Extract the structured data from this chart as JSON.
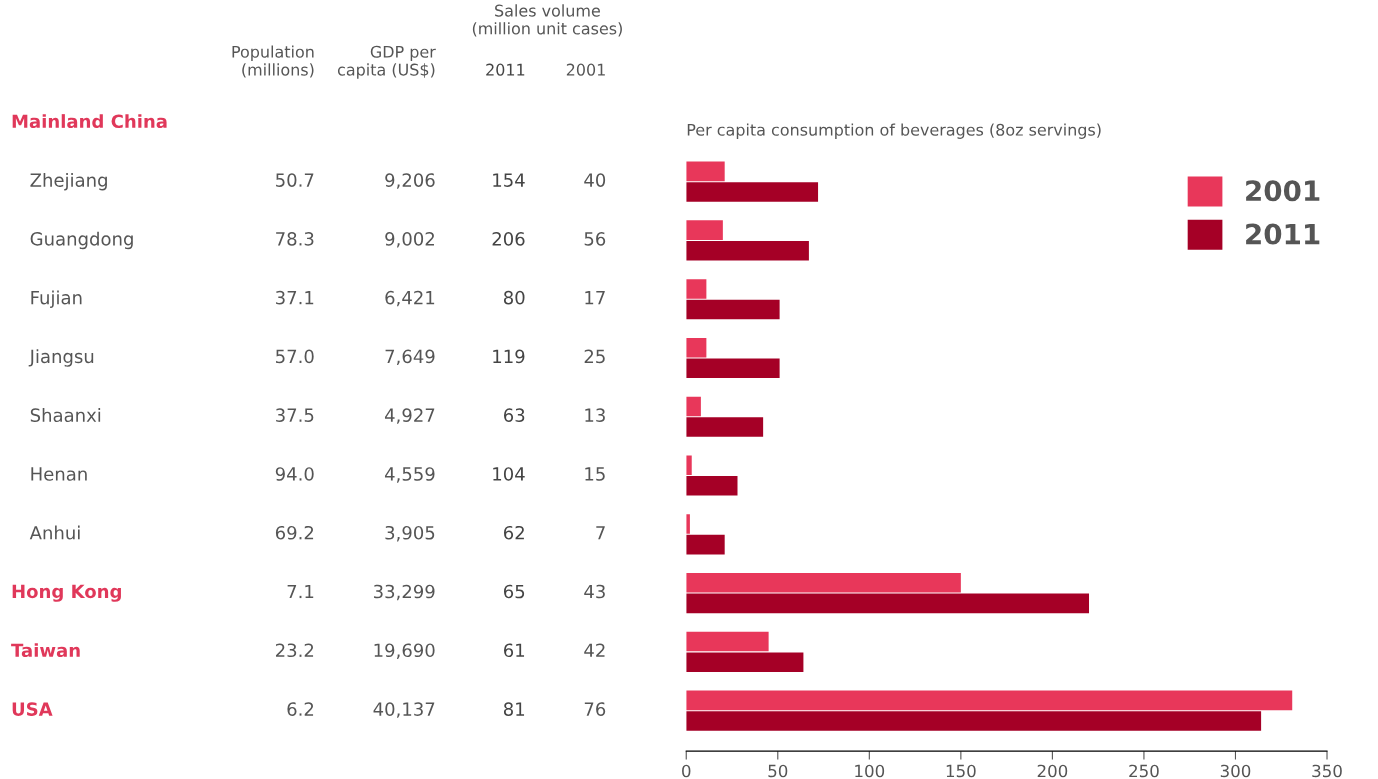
{
  "chart_data": [
    {
      "type": "other",
      "annotations": [
        "Sales volume\n(million unit cases)"
      ],
      "categories": [
        "Mainland China",
        "Zhejiang",
        "Guangdong",
        "Fujian",
        "Jiangsu",
        "Shaanxi",
        "Henan",
        "Anhui",
        "Hong Kong",
        "Taiwan",
        "USA"
      ],
      "colors": [
        "#e0385a",
        "#555555",
        "#555555",
        "#555555",
        "#555555",
        "#555555",
        "#555555",
        "#555555",
        "#e0385a",
        "#e0385a",
        "#e0385a"
      ],
      "series": [
        {
          "name": "Population\n(millions)",
          "color": "#555555",
          "values": [
            null,
            50.7,
            78.3,
            37.1,
            57.0,
            37.5,
            94.0,
            69.2,
            7.1,
            23.2,
            6.2
          ],
          "value_labels": [
            null,
            "50.7",
            "78.3",
            "37.1",
            "57.0",
            "37.5",
            "94.0",
            "69.2",
            "7.1",
            "23.2",
            "6.2"
          ]
        },
        {
          "name": "GDP per\ncapita (US$)",
          "color": "#555555",
          "values": [
            null,
            9206,
            9002,
            6421,
            7649,
            4927,
            4559,
            3905,
            33299,
            19690,
            40137
          ],
          "value_labels": [
            null,
            "9,206",
            "9,002",
            "6,421",
            "7,649",
            "4,927",
            "4,559",
            "3,905",
            "33,299",
            "19,690",
            "40,137"
          ]
        },
        {
          "name": "2011",
          "color": "#444444",
          "values": [
            null,
            154,
            206,
            80,
            119,
            63,
            104,
            62,
            65,
            61,
            81
          ],
          "value_labels": [
            null,
            "154",
            "206",
            "80",
            "119",
            "63",
            "104",
            "62",
            "65",
            "61",
            "81"
          ]
        },
        {
          "name": "2001",
          "color": "#555555",
          "values": [
            null,
            40,
            56,
            17,
            25,
            13,
            15,
            7,
            43,
            42,
            76
          ],
          "value_labels": [
            null,
            "40",
            "56",
            "17",
            "25",
            "13",
            "15",
            "7",
            "43",
            "42",
            "76"
          ]
        }
      ]
    },
    {
      "type": "bar",
      "orientation": "horizontal",
      "title": "Per capita consumption of beverages (8oz servings)",
      "categories": [
        null,
        null,
        null,
        null,
        null,
        null,
        null,
        null,
        null,
        null
      ],
      "series": [
        {
          "name": "2001",
          "color": "#e8375a",
          "values": [
            21,
            20,
            11,
            11,
            8,
            3,
            2,
            150,
            45,
            331
          ]
        },
        {
          "name": "2011",
          "color": "#a50026",
          "values": [
            72,
            67,
            51,
            51,
            42,
            28,
            21,
            220,
            64,
            314
          ]
        }
      ],
      "xlim": [
        0,
        350
      ],
      "xticks": [
        0,
        50,
        100,
        150,
        200,
        250,
        300,
        350
      ],
      "legend": "top right",
      "grid": false
    }
  ]
}
